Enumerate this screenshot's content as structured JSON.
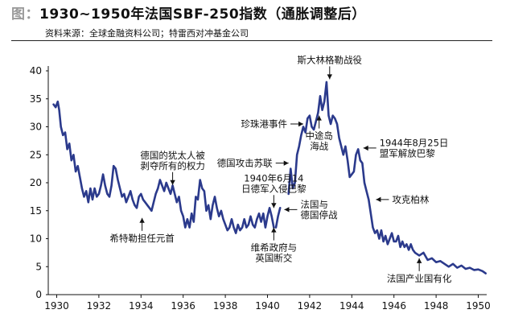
{
  "title_prefix": "图：",
  "title": "1930~1950年法国SBF-250指数（通胀调整后）",
  "source": "资料来源：全球金融资料公司；特雷西对冲基金公司",
  "colors": {
    "series": "#2b3a8c",
    "text": "#111111"
  },
  "chart_data": {
    "type": "line",
    "title": "1930~1950年法国SBF-250指数（通胀调整后）",
    "xlabel": "",
    "ylabel": "",
    "xlim": [
      1929.6,
      1950.4
    ],
    "ylim": [
      0,
      40
    ],
    "x_ticks": [
      1930,
      1932,
      1934,
      1936,
      1938,
      1940,
      1942,
      1944,
      1946,
      1948,
      1950
    ],
    "y_ticks": [
      0,
      5,
      10,
      15,
      20,
      25,
      30,
      35,
      40
    ],
    "grid": false,
    "legend": "none",
    "series": [
      {
        "segments": [
          {
            "x": [
              1929.85,
              1929.95,
              1930.05,
              1930.12,
              1930.2,
              1930.3,
              1930.4,
              1930.5,
              1930.6,
              1930.7,
              1930.8,
              1930.9,
              1931.0,
              1931.1,
              1931.2,
              1931.3,
              1931.4,
              1931.5,
              1931.6,
              1931.7,
              1931.8,
              1931.9,
              1932.0,
              1932.1,
              1932.2,
              1932.3,
              1932.4,
              1932.5,
              1932.6,
              1932.7,
              1932.8,
              1932.9,
              1933.0,
              1933.1,
              1933.2,
              1933.3,
              1933.4,
              1933.5,
              1933.6,
              1933.7,
              1933.8,
              1933.9,
              1934.0,
              1934.1,
              1934.2,
              1934.3,
              1934.4,
              1934.5,
              1934.6,
              1934.7,
              1934.8,
              1934.9,
              1935.0,
              1935.1,
              1935.2,
              1935.3,
              1935.4,
              1935.5,
              1935.6,
              1935.7,
              1935.8,
              1935.9,
              1936.0,
              1936.1,
              1936.2,
              1936.3,
              1936.4,
              1936.5,
              1936.6,
              1936.7,
              1936.8,
              1936.9,
              1937.0,
              1937.1,
              1937.2,
              1937.3,
              1937.4,
              1937.5,
              1937.6,
              1937.7,
              1937.8,
              1937.9,
              1938.0,
              1938.1,
              1938.2,
              1938.3,
              1938.4,
              1938.5,
              1938.6,
              1938.7,
              1938.8,
              1938.9,
              1939.0,
              1939.1,
              1939.2,
              1939.3,
              1939.4,
              1939.5,
              1939.6,
              1939.7,
              1939.8,
              1939.9,
              1940.0,
              1940.1,
              1940.2,
              1940.3
            ],
            "y": [
              34,
              33.5,
              34.5,
              33,
              30,
              28.5,
              29,
              26,
              27,
              24,
              25,
              22,
              23,
              21,
              19,
              17.5,
              18.5,
              16.5,
              19,
              17,
              19,
              17.5,
              18,
              19.5,
              21.5,
              19.5,
              18,
              17.5,
              19.5,
              23,
              22.5,
              20.5,
              19,
              17.5,
              18,
              16.5,
              17.5,
              18.5,
              17,
              16,
              15.5,
              17.5,
              18,
              17,
              16.5,
              16,
              15.5,
              15,
              16.5,
              18,
              19,
              20.5,
              19.5,
              18.5,
              20,
              19,
              18,
              19.5,
              18,
              16.5,
              17.5,
              15,
              14,
              12,
              13.5,
              12,
              14.5,
              13,
              17.5,
              17,
              20.5,
              19,
              18.5,
              15,
              16,
              13.5,
              16,
              17.5,
              15.5,
              14,
              15,
              13.5,
              12.5,
              11.5,
              12,
              13.5,
              12,
              11,
              12.5,
              11.5,
              12,
              13.5,
              12,
              12.5,
              14,
              12.5,
              12,
              13.5,
              14.5,
              13,
              14.5,
              12,
              14,
              15.5,
              14,
              12
            ]
          },
          {
            "x": [
              1940.4,
              1940.5,
              1940.6
            ],
            "y": [
              12,
              14,
              15.5
            ]
          },
          {
            "x": [
              1941.0,
              1941.1,
              1941.2,
              1941.3,
              1941.4,
              1941.5,
              1941.6,
              1941.7,
              1941.8,
              1941.9,
              1942.0,
              1942.1,
              1942.2,
              1942.3,
              1942.4,
              1942.5,
              1942.6,
              1942.7,
              1942.8,
              1942.9,
              1943.0,
              1943.1,
              1943.2,
              1943.3,
              1943.4,
              1943.5,
              1943.6,
              1943.7,
              1943.8,
              1943.9,
              1944.0,
              1944.1,
              1944.2,
              1944.3,
              1944.4,
              1944.5,
              1944.6,
              1944.7,
              1944.8,
              1944.9,
              1945.0,
              1945.1,
              1945.2,
              1945.3,
              1945.4,
              1945.5,
              1945.6,
              1945.7,
              1945.8,
              1945.9,
              1946.0,
              1946.1,
              1946.2,
              1946.3,
              1946.4,
              1946.5,
              1946.6,
              1946.7,
              1946.8,
              1946.9,
              1947.0,
              1947.2,
              1947.4,
              1947.6,
              1947.8,
              1948.0,
              1948.2,
              1948.4,
              1948.6,
              1948.8,
              1949.0,
              1949.2,
              1949.4,
              1949.6,
              1949.8,
              1950.0,
              1950.2,
              1950.35
            ],
            "y": [
              18,
              22.5,
              19,
              20,
              25,
              26.5,
              28.5,
              30,
              29,
              31.5,
              32,
              30,
              29.5,
              31,
              32.5,
              35.5,
              33,
              34.5,
              38,
              32,
              30.5,
              32,
              31.5,
              30.5,
              28,
              26.5,
              25,
              26.5,
              24,
              21,
              21.5,
              22,
              25,
              26,
              24,
              23.5,
              20,
              18.5,
              17,
              14.5,
              12,
              11,
              11.5,
              10,
              11.5,
              9.5,
              10.5,
              9,
              10,
              11,
              9.5,
              9.5,
              10.5,
              8.5,
              9.5,
              8.5,
              9,
              8,
              9,
              8,
              7.5,
              7,
              7.5,
              6.2,
              6.5,
              5.8,
              6,
              5.5,
              5,
              5.5,
              4.8,
              5.2,
              4.6,
              4.8,
              4.4,
              4.5,
              4.2,
              3.8
            ]
          }
        ]
      }
    ],
    "annotations": [
      {
        "text": "希特勒担任元首",
        "x": 1934.05,
        "y": 13.7,
        "arrow": "up"
      },
      {
        "lines": [
          "德国的犹太人被",
          "剥夺所有的权力"
        ],
        "x": 1935.5,
        "y": 19.6,
        "arrow": "down"
      },
      {
        "text": "德国攻击苏联",
        "x": 1941.0,
        "y": 23.5,
        "arrow": "right"
      },
      {
        "lines": [
          "1940年6月14",
          "日德军入侵巴黎"
        ],
        "x": 1940.3,
        "y": 15.5,
        "arrow": "down"
      },
      {
        "lines": [
          "维希政府与",
          "英国断交"
        ],
        "x": 1940.3,
        "y": 12.0,
        "arrow": "up"
      },
      {
        "text": "珍珠港事件",
        "x": 1941.7,
        "y": 30.5,
        "arrow": "right"
      },
      {
        "text": "斯大林格勒战役",
        "x": 1942.95,
        "y": 38.5,
        "arrow": "down"
      },
      {
        "lines": [
          "中途岛",
          "海战"
        ],
        "x": 1942.45,
        "y": 32.0,
        "arrow": "up"
      },
      {
        "lines": [
          "法国与",
          "德国停战"
        ],
        "x": 1940.8,
        "y": 15.2,
        "arrow": "left"
      },
      {
        "lines": [
          "1944年8月25日",
          "盟军解放巴黎"
        ],
        "x": 1944.55,
        "y": 26.2,
        "arrow": "left"
      },
      {
        "text": "攻克柏林",
        "x": 1945.15,
        "y": 17.0,
        "arrow": "left"
      },
      {
        "text": "法国产业国有化",
        "x": 1947.2,
        "y": 6.5,
        "arrow": "up"
      }
    ]
  }
}
